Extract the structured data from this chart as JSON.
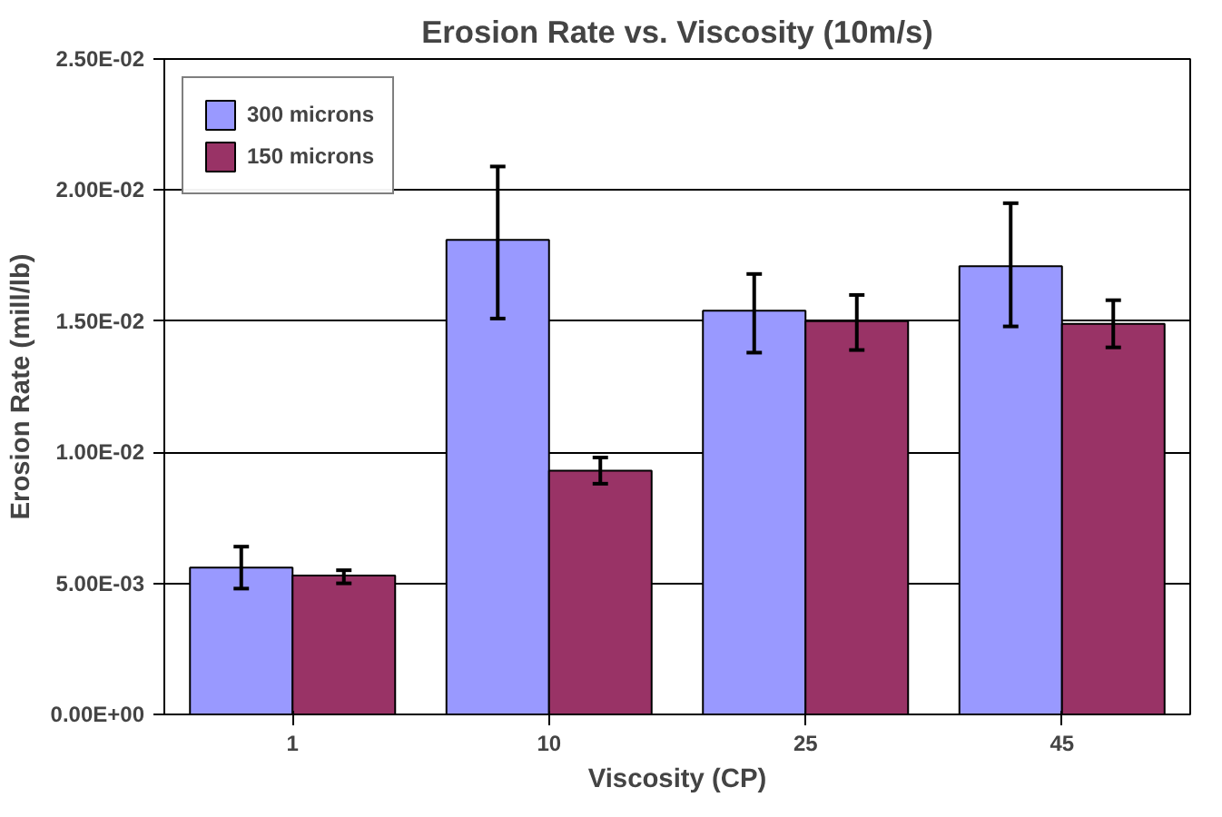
{
  "chart_data": {
    "type": "bar",
    "title": "Erosion Rate vs. Viscosity (10m/s)",
    "xlabel": "Viscosity (CP)",
    "ylabel": "Erosion Rate (mill/lb)",
    "categories": [
      "1",
      "10",
      "25",
      "45"
    ],
    "series": [
      {
        "name": "300 microns",
        "color": "#9999ff",
        "values": [
          0.0056,
          0.0181,
          0.0154,
          0.0171
        ],
        "errors": [
          [
            0.0048,
            0.0064
          ],
          [
            0.0151,
            0.0209
          ],
          [
            0.0138,
            0.0168
          ],
          [
            0.0148,
            0.0195
          ]
        ]
      },
      {
        "name": "150 microns",
        "color": "#993366",
        "values": [
          0.0053,
          0.0093,
          0.015,
          0.0149
        ],
        "errors": [
          [
            0.005,
            0.0055
          ],
          [
            0.0088,
            0.0098
          ],
          [
            0.0139,
            0.016
          ],
          [
            0.014,
            0.0158
          ]
        ]
      }
    ],
    "ylim": [
      0,
      0.025
    ],
    "yticks": [
      {
        "value": 0,
        "label": "0.00E+00"
      },
      {
        "value": 0.005,
        "label": "5.00E-03"
      },
      {
        "value": 0.01,
        "label": "1.00E-02"
      },
      {
        "value": 0.015,
        "label": "1.50E-02"
      },
      {
        "value": 0.02,
        "label": "2.00E-02"
      },
      {
        "value": 0.025,
        "label": "2.50E-02"
      }
    ],
    "grid": "y",
    "legend": "top left"
  }
}
